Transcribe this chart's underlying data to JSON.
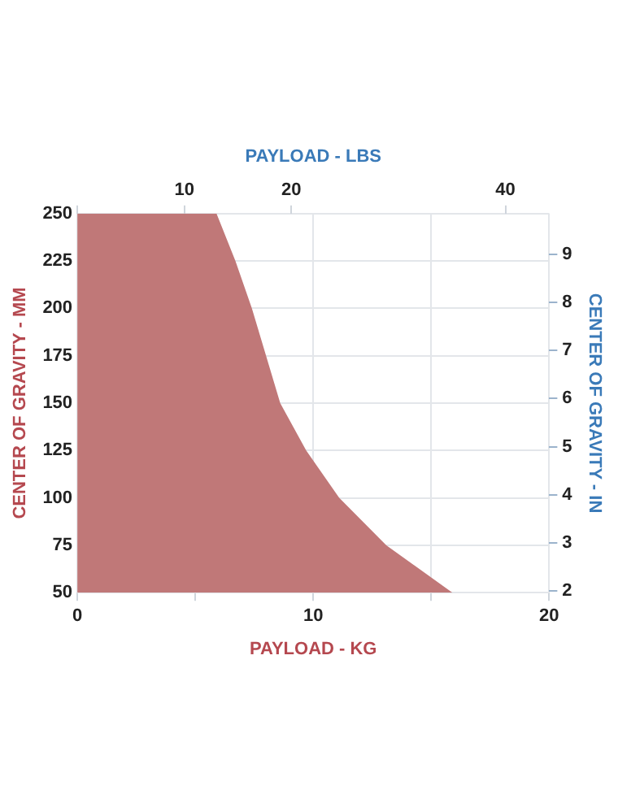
{
  "chart_data": {
    "type": "area",
    "xlabel": "PAYLOAD - KG",
    "ylabel": "CENTER OF GRAVITY - MM",
    "x2label": "PAYLOAD - LBS",
    "y2label": "CENTER OF GRAVITY - IN",
    "x": [
      0,
      5.9,
      6.7,
      7.4,
      8.0,
      8.6,
      9.7,
      11.1,
      13.1,
      15.9
    ],
    "values": [
      250,
      250,
      225,
      200,
      175,
      150,
      125,
      100,
      75,
      50
    ],
    "color": "#c07878",
    "xlim": [
      0,
      20
    ],
    "xticks": [
      0,
      {
        "value": 5,
        "label": null
      },
      10,
      {
        "value": 15,
        "label": null
      },
      20
    ],
    "ylim": [
      50,
      250
    ],
    "yticks": [
      50,
      75,
      100,
      125,
      150,
      175,
      200,
      225,
      250
    ],
    "x2lim": [
      0,
      44.09
    ],
    "x2ticks": [
      {
        "value": 0,
        "label": null
      },
      10,
      20,
      40
    ],
    "y2lim": [
      1.97,
      9.84
    ],
    "y2ticks": [
      2,
      3,
      4,
      5,
      6,
      7,
      8,
      9
    ],
    "grid": true
  }
}
